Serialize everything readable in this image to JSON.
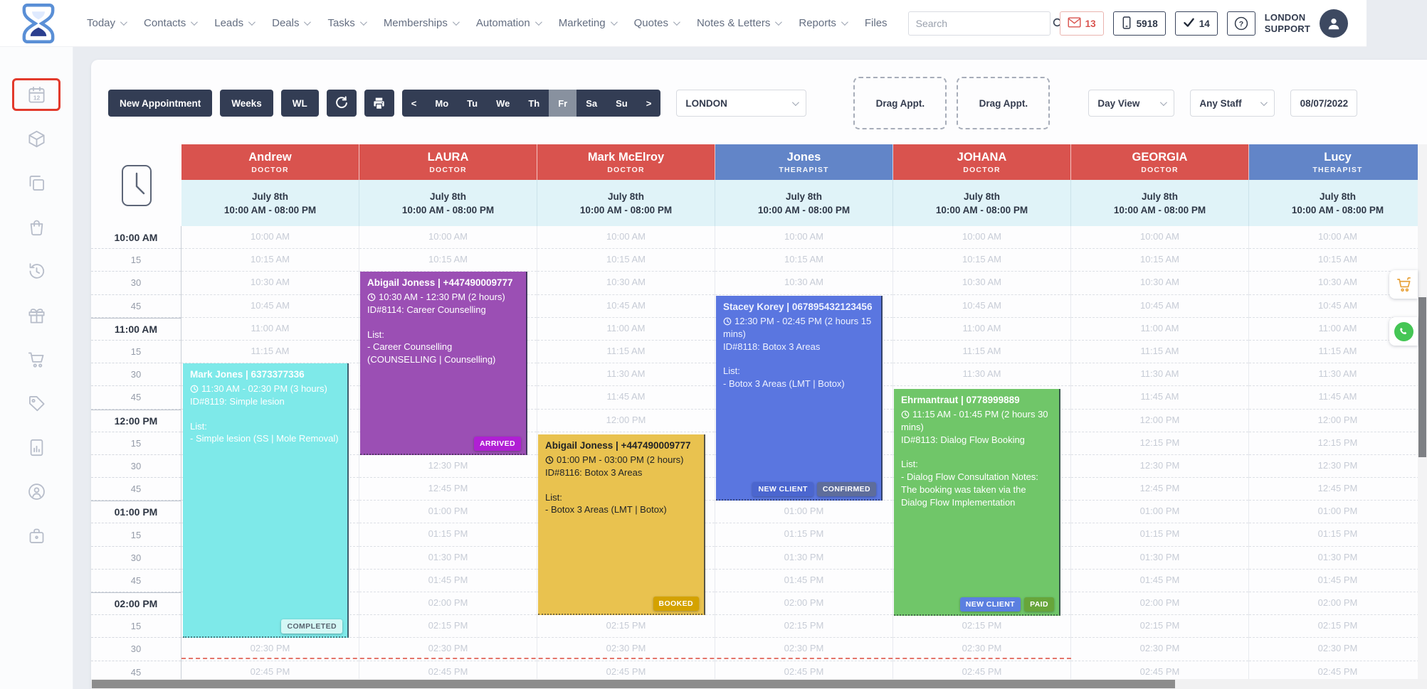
{
  "header": {
    "nav": [
      {
        "label": "Today",
        "caret": true
      },
      {
        "label": "Contacts",
        "caret": true
      },
      {
        "label": "Leads",
        "caret": true
      },
      {
        "label": "Deals",
        "caret": true
      },
      {
        "label": "Tasks",
        "caret": true
      },
      {
        "label": "Memberships",
        "caret": true
      },
      {
        "label": "Automation",
        "caret": true
      },
      {
        "label": "Marketing",
        "caret": true
      },
      {
        "label": "Quotes",
        "caret": true
      },
      {
        "label": "Notes & Letters",
        "caret": true
      },
      {
        "label": "Reports",
        "caret": true
      },
      {
        "label": "Files",
        "caret": false
      }
    ],
    "search_placeholder": "Search",
    "mail_count": "13",
    "phone_number": "5918",
    "check_count": "14",
    "account_line1": "LONDON",
    "account_line2": "SUPPORT"
  },
  "sidebar": {
    "icons": [
      "calendar-icon",
      "package-icon",
      "copy-icon",
      "shopping-bag-icon",
      "history-icon",
      "gift-icon",
      "cart-icon",
      "price-tag-icon",
      "report-icon",
      "support-icon",
      "briefcase-icon"
    ],
    "active_index": 0
  },
  "toolbar": {
    "new_appointment": "New Appointment",
    "weeks": "Weeks",
    "wl": "WL",
    "days": [
      "<",
      "Mo",
      "Tu",
      "We",
      "Th",
      "Fr",
      "Sa",
      "Su",
      ">"
    ],
    "selected_day": "Fr",
    "location": "LONDON",
    "drag_1": "Drag Appt.",
    "drag_2": "Drag Appt.",
    "view": "Day View",
    "staff_filter": "Any Staff",
    "date": "08/07/2022"
  },
  "calendar": {
    "columns": [
      {
        "name": "Andrew",
        "role": "DOCTOR",
        "color": "#d9534e",
        "date": "July 8th",
        "hours": "10:00 AM - 08:00 PM"
      },
      {
        "name": "LAURA",
        "role": "DOCTOR",
        "color": "#d9534e",
        "date": "July 8th",
        "hours": "10:00 AM - 08:00 PM"
      },
      {
        "name": "Mark McElroy",
        "role": "DOCTOR",
        "color": "#d9534e",
        "date": "July 8th",
        "hours": "10:00 AM - 08:00 PM"
      },
      {
        "name": "Jones",
        "role": "THERAPIST",
        "color": "#6285c8",
        "date": "July 8th",
        "hours": "10:00 AM - 08:00 PM"
      },
      {
        "name": "JOHANA",
        "role": "DOCTOR",
        "color": "#d9534e",
        "date": "July 8th",
        "hours": "10:00 AM - 08:00 PM"
      },
      {
        "name": "GEORGIA",
        "role": "DOCTOR",
        "color": "#d9534e",
        "date": "July 8th",
        "hours": "10:00 AM - 08:00 PM"
      },
      {
        "name": "Lucy",
        "role": "THERAPIST",
        "color": "#6285c8",
        "date": "July 8th",
        "hours": "10:00 AM - 08:00 PM"
      }
    ],
    "gutter_rows": [
      "10:00 AM",
      "15",
      "30",
      "45",
      "11:00 AM",
      "15",
      "30",
      "45",
      "12:00 PM",
      "15",
      "30",
      "45",
      "01:00 PM",
      "15",
      "30",
      "45",
      "02:00 PM",
      "15",
      "30",
      "45"
    ],
    "cell_times": [
      "10:00 AM",
      "10:15 AM",
      "10:30 AM",
      "10:45 AM",
      "11:00 AM",
      "11:15 AM",
      "11:30 AM",
      "11:45 AM",
      "12:00 PM",
      "12:15 PM",
      "12:30 PM",
      "12:45 PM",
      "01:00 PM",
      "01:15 PM",
      "01:30 PM",
      "01:45 PM",
      "02:00 PM",
      "02:15 PM",
      "02:30 PM",
      "02:45 PM"
    ]
  },
  "appointments": [
    {
      "name": "Mark Jones | 6373377336",
      "time": "11:30 AM - 02:30 PM (3 hours)",
      "booking": "ID#8119: Simple lesion",
      "list_label": "List:",
      "items": [
        "- Simple lesion (SS | Mole Removal)"
      ],
      "color": "#7ee9e9",
      "text_color": "#ffffff",
      "badges": [
        {
          "label": "COMPLETED",
          "bg": "#d4f7f5",
          "fg": "#59636f"
        }
      ]
    },
    {
      "name": "Abigail Joness | +447490009777",
      "time": "10:30 AM - 12:30 PM (2 hours)",
      "booking": "ID#8114: Career Counselling",
      "list_label": "List:",
      "items": [
        "- Career Counselling (COUNSELLING | Counselling)"
      ],
      "color": "#9b4fb4",
      "text_color": "#ffffff",
      "badges": [
        {
          "label": "ARRIVED",
          "bg": "#b01fd4",
          "fg": "#ffffff"
        }
      ]
    },
    {
      "name": "Abigail Joness | +447490009777",
      "time": "01:00 PM - 03:00 PM (2 hours)",
      "booking": "ID#8116: Botox 3 Areas",
      "list_label": "List:",
      "items": [
        "- Botox 3 Areas (LMT | Botox)"
      ],
      "color": "#e9c24f",
      "text_color": "#222426",
      "badges": [
        {
          "label": "BOOKED",
          "bg": "#d4a200",
          "fg": "#ffffff"
        }
      ]
    },
    {
      "name": "Stacey Korey | 067895432123456",
      "time": "12:30 PM - 02:45 PM (2 hours 15 mins)",
      "booking": "ID#8118: Botox 3 Areas",
      "list_label": "List:",
      "items": [
        "- Botox 3 Areas (LMT | Botox)"
      ],
      "color": "#5a76e0",
      "text_color": "#eef2ff",
      "badges": [
        {
          "label": "NEW CLIENT",
          "bg": "#4b66cf",
          "fg": "#ffffff"
        },
        {
          "label": "CONFIRMED",
          "bg": "#5e6d9b",
          "fg": "#ffffff"
        }
      ]
    },
    {
      "name": "Ehrmantraut | 0778999889",
      "time": "11:15 AM - 01:45 PM (2 hours 30 mins)",
      "booking": "ID#8113: Dialog Flow Booking",
      "list_label": "List:",
      "items": [
        "- Dialog Flow Consultation Notes: The booking was taken via the Dialog Flow Implementation"
      ],
      "color": "#70c669",
      "text_color": "#ffffff",
      "badges": [
        {
          "label": "NEW CLIENT",
          "bg": "#5b7fe0",
          "fg": "#ffffff"
        },
        {
          "label": "PAID",
          "bg": "#67a53a",
          "fg": "#ffffff"
        }
      ]
    }
  ]
}
